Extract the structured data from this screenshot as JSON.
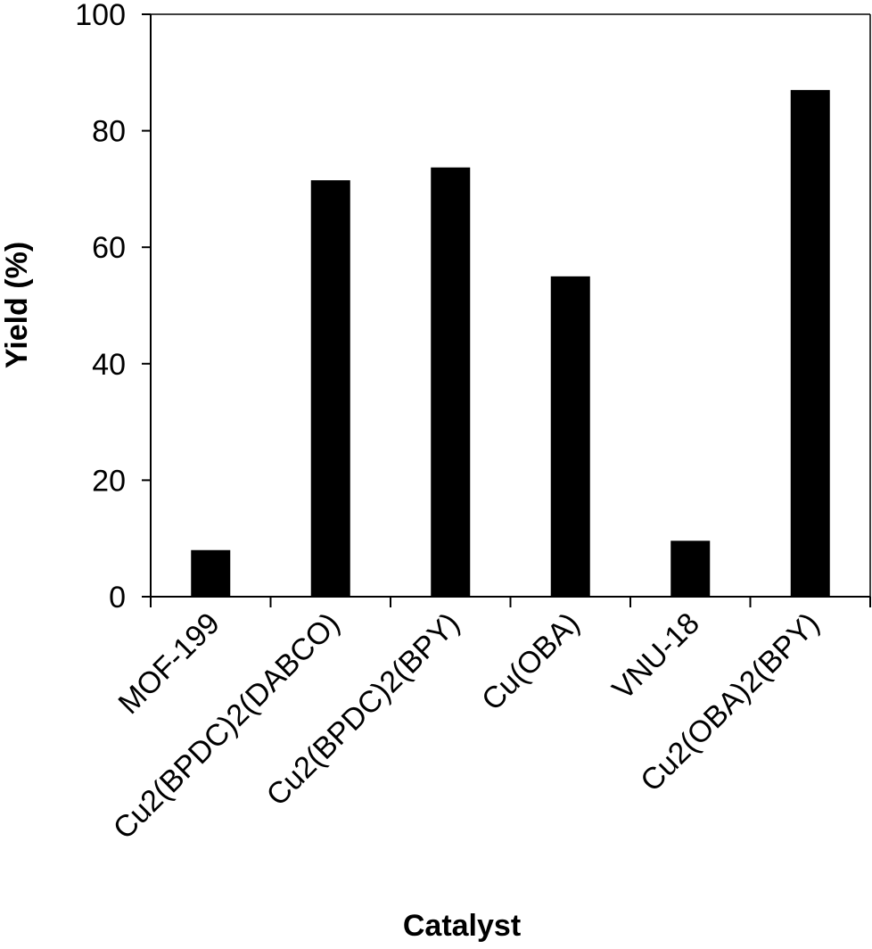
{
  "chart_data": {
    "type": "bar",
    "title": "",
    "xlabel": "Catalyst",
    "ylabel": "Yield (%)",
    "categories": [
      "MOF-199",
      "Cu2(BPDC)2(DABCO)",
      "Cu2(BPDC)2(BPY)",
      "Cu(OBA)",
      "VNU-18",
      "Cu2(OBA)2(BPY)"
    ],
    "values": [
      8,
      71.5,
      73.7,
      55,
      9.6,
      87
    ],
    "ylim": [
      0,
      100
    ],
    "yticks": [
      "0",
      "20",
      "40",
      "60",
      "80",
      "100"
    ],
    "grid": false,
    "bar_color": "#000000"
  }
}
